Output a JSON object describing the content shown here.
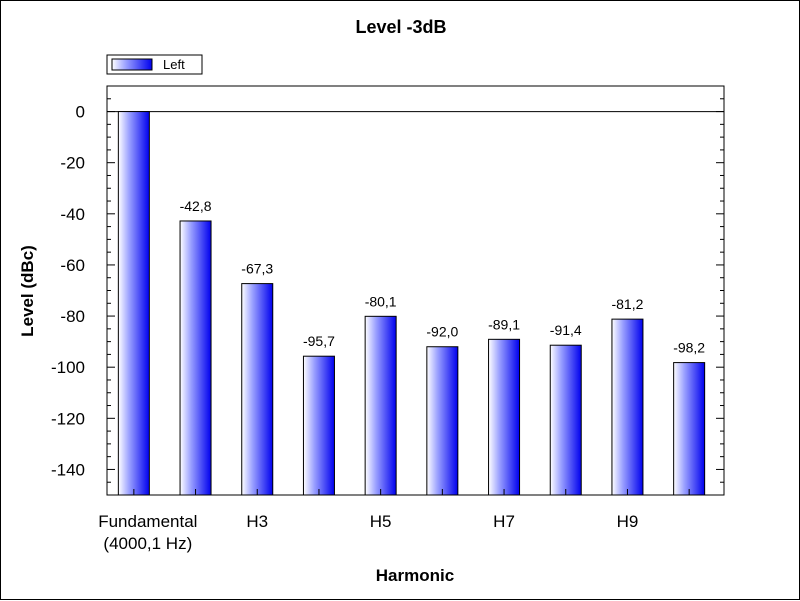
{
  "chart_data": {
    "type": "bar",
    "title": "Level -3dB",
    "xlabel": "Harmonic",
    "ylabel": "Level (dBc)",
    "ylim": [
      -150,
      10
    ],
    "yticks": [
      0,
      -20,
      -40,
      -60,
      -80,
      -100,
      -120,
      -140
    ],
    "x_tick_labels": [
      {
        "index": 0,
        "lines": [
          "Fundamental",
          "(4000,1 Hz)"
        ]
      },
      {
        "index": 2,
        "lines": [
          "H3"
        ]
      },
      {
        "index": 4,
        "lines": [
          "H5"
        ]
      },
      {
        "index": 6,
        "lines": [
          "H7"
        ]
      },
      {
        "index": 8,
        "lines": [
          "H9"
        ]
      }
    ],
    "series": [
      {
        "name": "Left",
        "color": "#0000ee",
        "values": [
          0,
          -42.8,
          -67.3,
          -95.7,
          -80.1,
          -92.0,
          -89.1,
          -91.4,
          -81.2,
          -98.2
        ],
        "data_labels": [
          "",
          "-42,8",
          "-67,3",
          "-95,7",
          "-80,1",
          "-92,0",
          "-89,1",
          "-91,4",
          "-81,2",
          "-98,2"
        ]
      }
    ],
    "legend_position": "top-left",
    "grid": false
  }
}
